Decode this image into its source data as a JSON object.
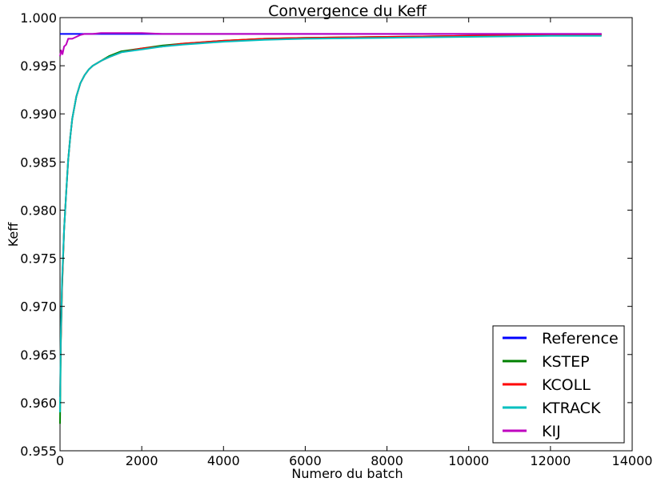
{
  "chart_data": {
    "type": "line",
    "title": "Convergence du Keff",
    "xlabel": "Numero du batch",
    "ylabel": "Keff",
    "xlim": [
      0,
      14000
    ],
    "ylim": [
      0.955,
      1.0
    ],
    "xticks": [
      0,
      2000,
      4000,
      6000,
      8000,
      10000,
      12000,
      14000
    ],
    "xtick_labels": [
      "0",
      "2000",
      "4000",
      "6000",
      "8000",
      "10000",
      "12000",
      "14000"
    ],
    "yticks": [
      0.955,
      0.96,
      0.965,
      0.97,
      0.975,
      0.98,
      0.985,
      0.99,
      0.995,
      1.0
    ],
    "ytick_labels": [
      "0.955",
      "0.960",
      "0.965",
      "0.970",
      "0.975",
      "0.980",
      "0.985",
      "0.990",
      "0.995",
      "1.000"
    ],
    "grid": false,
    "legend_position": "lower-right",
    "series": [
      {
        "name": "Reference",
        "color": "#0000ff",
        "x": [
          0,
          13250
        ],
        "y": [
          0.9983,
          0.9983
        ]
      },
      {
        "name": "KSTEP",
        "color": "#008000",
        "x": [
          0,
          20,
          50,
          100,
          150,
          200,
          250,
          300,
          400,
          500,
          600,
          700,
          800,
          1000,
          1200,
          1500,
          2000,
          2500,
          3000,
          4000,
          5000,
          6000,
          8000,
          10000,
          12000,
          13250
        ],
        "y": [
          0.9578,
          0.966,
          0.972,
          0.978,
          0.9818,
          0.9852,
          0.9876,
          0.9895,
          0.9918,
          0.9932,
          0.994,
          0.9946,
          0.995,
          0.9955,
          0.996,
          0.9965,
          0.9968,
          0.9971,
          0.9973,
          0.9976,
          0.9978,
          0.9979,
          0.998,
          0.9981,
          0.9982,
          0.9982
        ]
      },
      {
        "name": "KCOLL",
        "color": "#ff0000",
        "x": [
          0,
          20,
          50,
          100,
          150,
          200,
          250,
          300,
          400,
          500,
          600,
          700,
          800,
          1000,
          1200,
          1500,
          2000,
          2500,
          3000,
          4000,
          5000,
          6000,
          8000,
          10000,
          12000,
          13250
        ],
        "y": [
          0.9606,
          0.9665,
          0.9723,
          0.978,
          0.9818,
          0.9852,
          0.9876,
          0.9895,
          0.9918,
          0.9932,
          0.994,
          0.9946,
          0.995,
          0.9955,
          0.9959,
          0.9964,
          0.9968,
          0.997,
          0.9973,
          0.9976,
          0.9978,
          0.9979,
          0.998,
          0.9981,
          0.9982,
          0.9982
        ]
      },
      {
        "name": "KTRACK",
        "color": "#00bfbf",
        "x": [
          0,
          20,
          50,
          100,
          150,
          200,
          250,
          300,
          400,
          500,
          600,
          700,
          800,
          1000,
          1200,
          1500,
          2000,
          2500,
          3000,
          4000,
          5000,
          6000,
          8000,
          10000,
          12000,
          13250
        ],
        "y": [
          0.959,
          0.967,
          0.9728,
          0.978,
          0.9818,
          0.9852,
          0.9876,
          0.9895,
          0.9918,
          0.9932,
          0.994,
          0.9946,
          0.995,
          0.9955,
          0.9959,
          0.9964,
          0.9967,
          0.997,
          0.9972,
          0.9975,
          0.9977,
          0.9978,
          0.9979,
          0.998,
          0.9981,
          0.9981
        ]
      },
      {
        "name": "KIJ",
        "color": "#bf00bf",
        "x": [
          0,
          30,
          60,
          100,
          150,
          200,
          300,
          400,
          500,
          600,
          700,
          800,
          1000,
          1500,
          2000,
          2500,
          3000,
          4000,
          6000,
          8000,
          10000,
          12000,
          13250
        ],
        "y": [
          0.996,
          0.9966,
          0.9962,
          0.997,
          0.9972,
          0.9978,
          0.9978,
          0.998,
          0.9982,
          0.9983,
          0.9983,
          0.9983,
          0.9984,
          0.9984,
          0.9984,
          0.9983,
          0.9983,
          0.9983,
          0.9983,
          0.9983,
          0.9983,
          0.9983,
          0.9983
        ]
      }
    ]
  }
}
